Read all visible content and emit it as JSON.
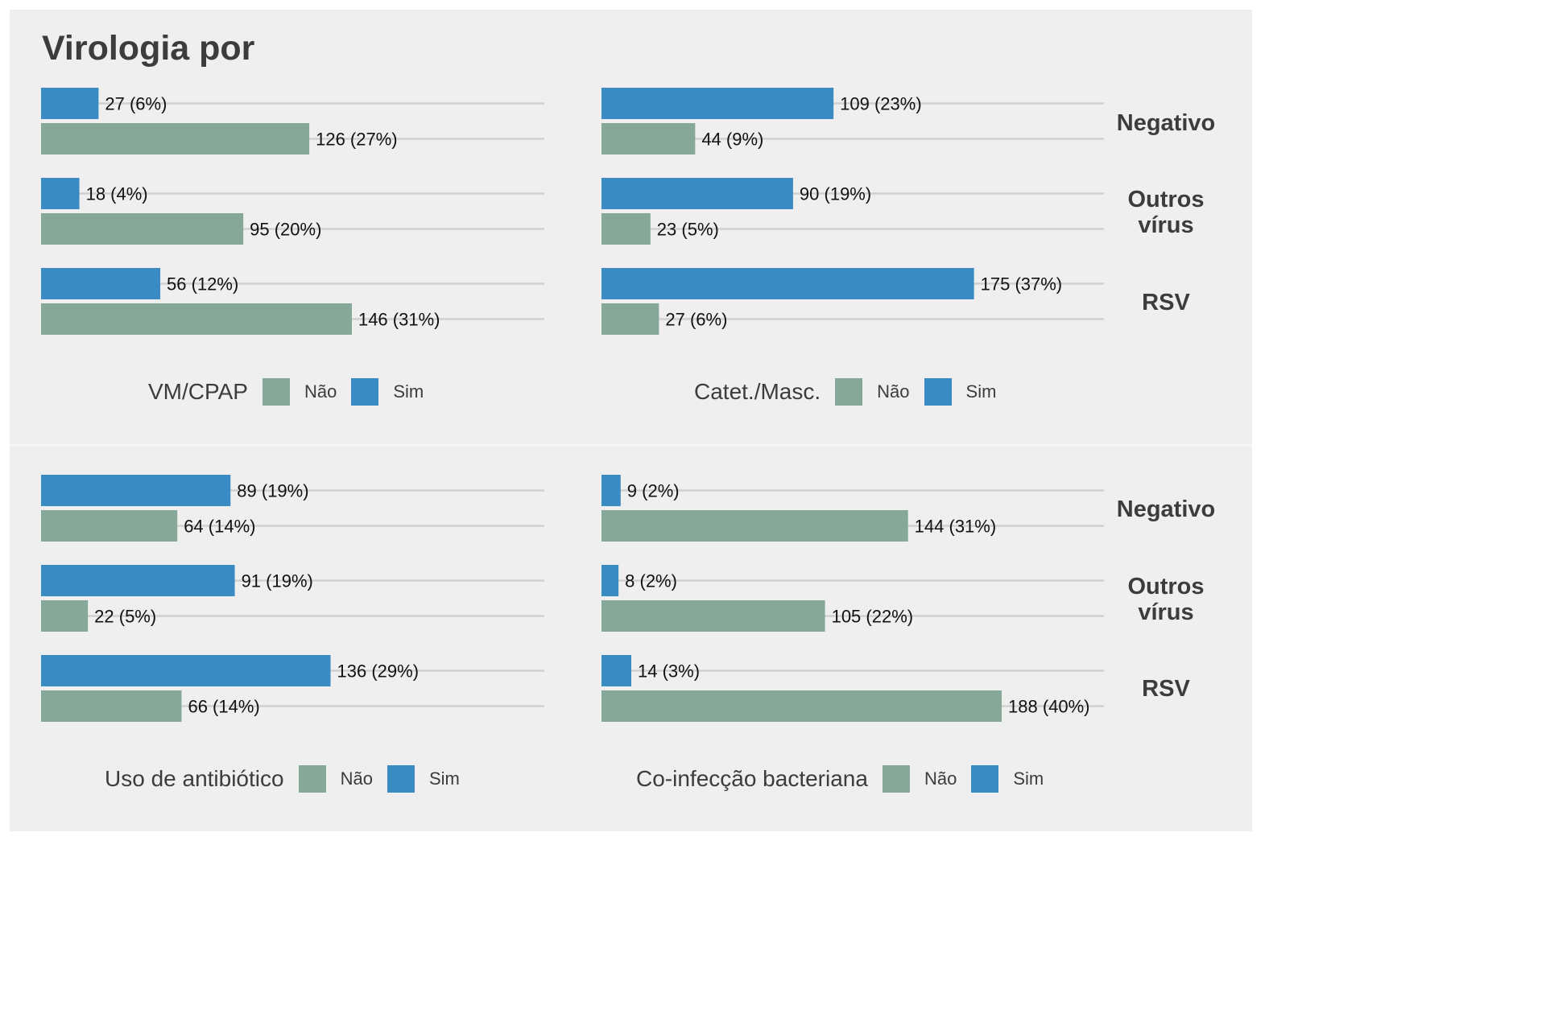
{
  "title": "Virologia por",
  "colors": {
    "nao": "#85a899",
    "sim": "#3a8ac4",
    "grid": "#d0d0d0",
    "text": "#3c3c3c",
    "label": "#111111"
  },
  "legend_labels": {
    "nao": "Não",
    "sim": "Sim"
  },
  "strip_labels": [
    "Negativo",
    "Outros vírus",
    "RSV"
  ],
  "chart_data": [
    {
      "type": "bar",
      "orientation": "horizontal",
      "legend_title": "VM/CPAP",
      "categories": [
        "Negativo",
        "Outros vírus",
        "RSV"
      ],
      "series": [
        {
          "name": "Sim",
          "values": [
            27,
            18,
            56
          ],
          "labels": [
            "27 (6%)",
            "18 (4%)",
            "56 (12%)"
          ]
        },
        {
          "name": "Não",
          "values": [
            126,
            95,
            146
          ],
          "labels": [
            "126 (27%)",
            "95 (20%)",
            "146 (31%)"
          ]
        }
      ]
    },
    {
      "type": "bar",
      "orientation": "horizontal",
      "legend_title": "Catet./Masc.",
      "categories": [
        "Negativo",
        "Outros vírus",
        "RSV"
      ],
      "series": [
        {
          "name": "Sim",
          "values": [
            109,
            90,
            175
          ],
          "labels": [
            "109 (23%)",
            "90 (19%)",
            "175 (37%)"
          ]
        },
        {
          "name": "Não",
          "values": [
            44,
            23,
            27
          ],
          "labels": [
            "44 (9%)",
            "23 (5%)",
            "27 (6%)"
          ]
        }
      ]
    },
    {
      "type": "bar",
      "orientation": "horizontal",
      "legend_title": "Uso de antibiótico",
      "categories": [
        "Negativo",
        "Outros vírus",
        "RSV"
      ],
      "series": [
        {
          "name": "Sim",
          "values": [
            89,
            91,
            136
          ],
          "labels": [
            "89 (19%)",
            "91 (19%)",
            "136 (29%)"
          ]
        },
        {
          "name": "Não",
          "values": [
            64,
            22,
            66
          ],
          "labels": [
            "64 (14%)",
            "22 (5%)",
            "66 (14%)"
          ]
        }
      ]
    },
    {
      "type": "bar",
      "orientation": "horizontal",
      "legend_title": "Co-infecção bacteriana",
      "categories": [
        "Negativo",
        "Outros vírus",
        "RSV"
      ],
      "series": [
        {
          "name": "Sim",
          "values": [
            9,
            8,
            14
          ],
          "labels": [
            "9 (2%)",
            "8 (2%)",
            "14 (3%)"
          ]
        },
        {
          "name": "Não",
          "values": [
            144,
            105,
            188
          ],
          "labels": [
            "144 (31%)",
            "105 (22%)",
            "188 (40%)"
          ]
        }
      ]
    }
  ]
}
